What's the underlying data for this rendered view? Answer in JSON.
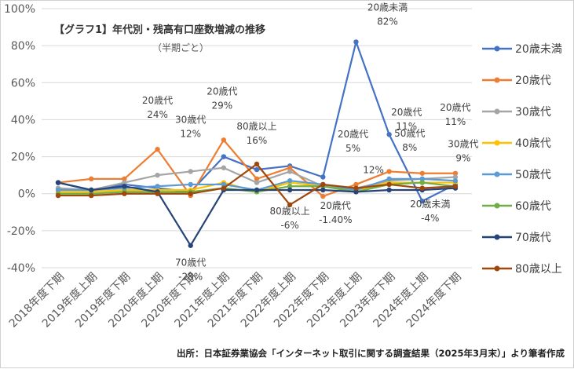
{
  "chart_data": {
    "type": "line",
    "title": "【グラフ1】年代別・残高有口座数増減の推移",
    "subtitle": "（半期ごと）",
    "categories": [
      "2018年度下期",
      "2019年度上期",
      "2019年度下期",
      "2020年度上期",
      "2020年度下期",
      "2021年度上期",
      "2021年度下期",
      "2022年度上期",
      "2022年度下期",
      "2023年度上期",
      "2023年度下期",
      "2024年度上期",
      "2024年度下期"
    ],
    "y_ticks": [
      "100%",
      "80%",
      "60%",
      "40%",
      "20%",
      "0%",
      "-20%",
      "-40%"
    ],
    "ylim": [
      -40,
      100
    ],
    "grid": true,
    "legend_position": "right",
    "series": [
      {
        "name": "20歳未満",
        "color": "#4472C4",
        "values": [
          6,
          2,
          5,
          3,
          1,
          20,
          13,
          15,
          9,
          82,
          32,
          -4,
          5
        ]
      },
      {
        "name": "20歳代",
        "color": "#ED7D31",
        "values": [
          6,
          8,
          8,
          24,
          -1,
          29,
          8,
          14,
          -1.4,
          5,
          12,
          11,
          11
        ]
      },
      {
        "name": "30歳代",
        "color": "#A5A5A5",
        "values": [
          3,
          2,
          6,
          10,
          12,
          14,
          6,
          12,
          4,
          3,
          7,
          8,
          9
        ]
      },
      {
        "name": "40歳代",
        "color": "#FFC000",
        "values": [
          1,
          1,
          2,
          2,
          2,
          6,
          1,
          6,
          4,
          2,
          6,
          6,
          6
        ]
      },
      {
        "name": "50歳代",
        "color": "#5B9BD5",
        "values": [
          2,
          2,
          3,
          4,
          5,
          5,
          2,
          7,
          5,
          2,
          8,
          8,
          7
        ]
      },
      {
        "name": "60歳代",
        "color": "#70AD47",
        "values": [
          0,
          0,
          1,
          1,
          1,
          3,
          1,
          4,
          4,
          1,
          5,
          6,
          4
        ]
      },
      {
        "name": "70歳代",
        "color": "#264478",
        "values": [
          6,
          2,
          4,
          1,
          -28,
          2,
          2,
          2,
          2,
          1,
          2,
          2,
          3
        ]
      },
      {
        "name": "80歳以上",
        "color": "#9E480E",
        "values": [
          -1,
          -1,
          0,
          0,
          0,
          3,
          16,
          -6,
          5,
          3,
          5,
          3,
          4
        ]
      }
    ],
    "annotations": [
      {
        "series": "20歳代",
        "index": 3,
        "label": "20歳代",
        "value": "24%"
      },
      {
        "series": "70歳代",
        "index": 4,
        "label": "70歳代",
        "value": "-28%"
      },
      {
        "series": "30歳代",
        "index": 4,
        "label": "30歳代",
        "value": "12%"
      },
      {
        "series": "20歳代",
        "index": 5,
        "label": "20歳代",
        "value": "29%"
      },
      {
        "series": "80歳以上",
        "index": 6,
        "label": "80歳以上",
        "value": "16%"
      },
      {
        "series": "80歳以上",
        "index": 7,
        "label": "80歳以上",
        "value": "-6%"
      },
      {
        "series": "20歳代",
        "index": 8,
        "label": "20歳代",
        "value": "-1.40%"
      },
      {
        "series": "20歳未満",
        "index": 9,
        "label": "20歳未満",
        "value": "82%"
      },
      {
        "series": "20歳代",
        "index": 9,
        "label": "20歳代",
        "value": "5%"
      },
      {
        "series": "20歳代",
        "index": 10,
        "label": "",
        "value": "12%"
      },
      {
        "series": "20歳代",
        "index": 11,
        "label": "20歳代",
        "value": "11%"
      },
      {
        "series": "50歳代",
        "index": 11,
        "label": "50歳代",
        "value": "8%"
      },
      {
        "series": "20歳未満",
        "index": 11,
        "label": "20歳未満",
        "value": "-4%"
      },
      {
        "series": "20歳代",
        "index": 12,
        "label": "20歳代",
        "value": "11%"
      },
      {
        "series": "30歳代",
        "index": 12,
        "label": "30歳代",
        "value": "9%"
      }
    ],
    "source": "出所：日本証券業協会「インターネット取引に関する調査結果（2025年3月末）」より筆者作成"
  }
}
